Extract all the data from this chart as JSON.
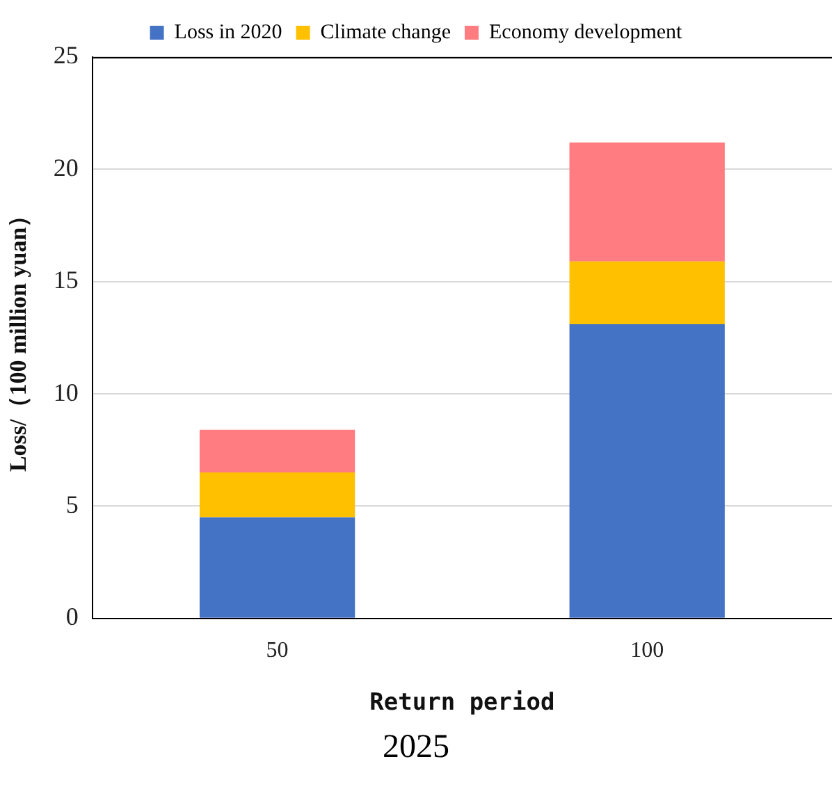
{
  "chart_data": {
    "type": "bar",
    "stacked": true,
    "xlabel": "Return period",
    "ylabel": "Loss/（100 million yuan）",
    "categories": [
      "50",
      "100"
    ],
    "series": [
      {
        "name": "Loss in 2020",
        "color": "#4472c4",
        "values": [
          4.5,
          13.1
        ]
      },
      {
        "name": "Climate change",
        "color": "#ffc000",
        "values": [
          2.0,
          2.8
        ]
      },
      {
        "name": "Economy development",
        "color": "#ff7c80",
        "values": [
          1.9,
          5.3
        ]
      }
    ],
    "ylim": [
      0,
      25
    ],
    "yticks": [
      0,
      5,
      10,
      15,
      20,
      25
    ],
    "grid": "y",
    "legend": "top",
    "annotations": [
      "2025"
    ]
  }
}
